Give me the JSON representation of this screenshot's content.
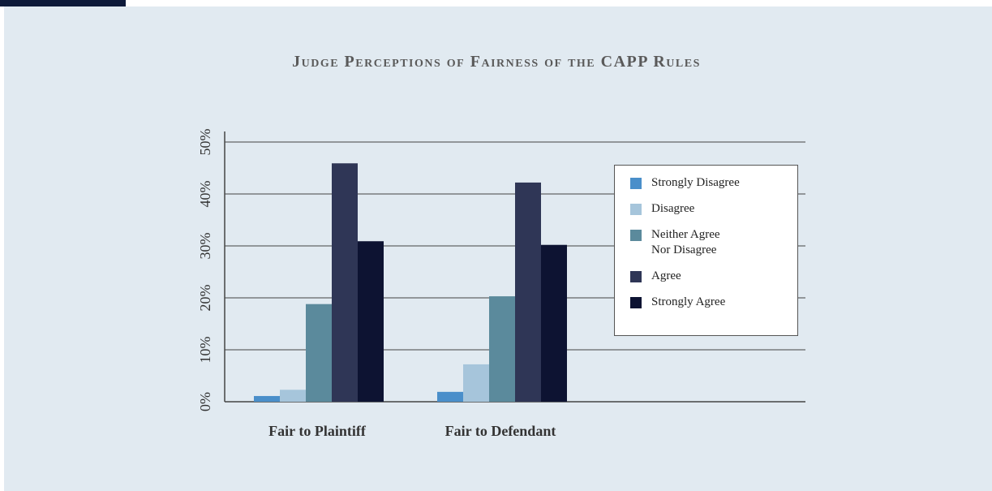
{
  "chart_data": {
    "type": "bar",
    "title": "Judge Perceptions of Fairness of the CAPP Rules",
    "categories": [
      "Fair to Plaintiff",
      "Fair to Defendant"
    ],
    "series": [
      {
        "name": "Strongly Disagree",
        "color": "#4a8fca",
        "values": [
          1.1,
          1.9
        ]
      },
      {
        "name": "Disagree",
        "color": "#a6c5db",
        "values": [
          2.3,
          7.2
        ]
      },
      {
        "name": "Neither Agree Nor Disagree",
        "color": "#5b8a9c",
        "values": [
          18.8,
          20.3
        ]
      },
      {
        "name": "Agree",
        "color": "#2f3656",
        "values": [
          45.9,
          42.2
        ]
      },
      {
        "name": "Strongly Agree",
        "color": "#0d1332",
        "values": [
          30.9,
          30.2
        ]
      }
    ],
    "ylim": [
      0,
      50
    ],
    "yticks": [
      {
        "value": 0,
        "label": "0%"
      },
      {
        "value": 10,
        "label": "10%"
      },
      {
        "value": 20,
        "label": "20%"
      },
      {
        "value": 30,
        "label": "30%"
      },
      {
        "value": 40,
        "label": "40%"
      },
      {
        "value": 50,
        "label": "50%"
      }
    ],
    "grid": true,
    "legend": "right"
  }
}
